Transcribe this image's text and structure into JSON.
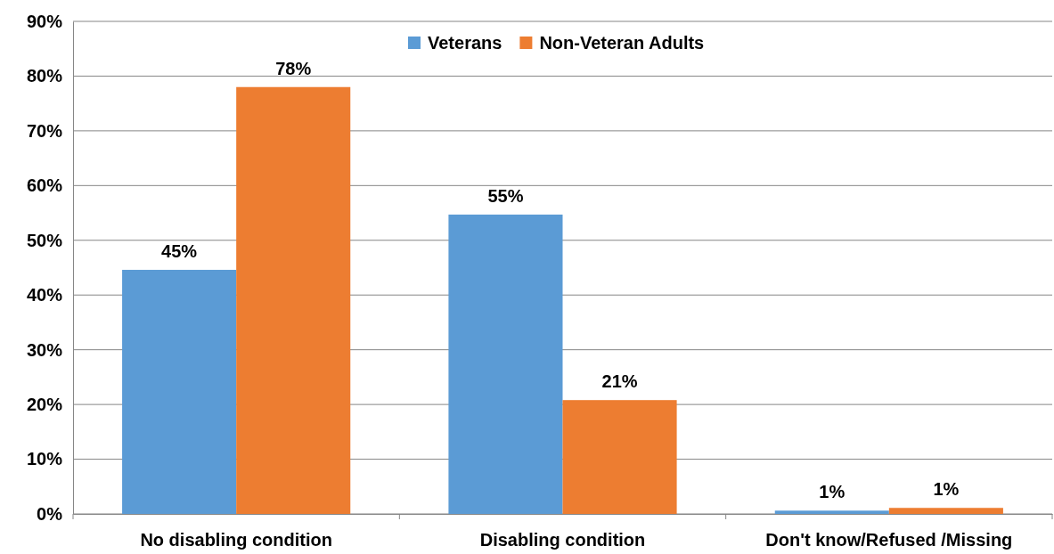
{
  "chart_data": {
    "type": "bar",
    "categories": [
      "No disabling condition",
      "Disabling condition",
      "Don't know/Refused /Missing"
    ],
    "series": [
      {
        "name": "Veterans",
        "color": "#5b9bd5",
        "values": [
          44.6,
          54.7,
          0.6
        ],
        "value_labels": [
          "45%",
          "55%",
          "1%"
        ]
      },
      {
        "name": "Non-Veteran Adults",
        "color": "#ed7d31",
        "values": [
          78,
          20.8,
          1.1
        ],
        "value_labels": [
          "78%",
          "21%",
          "1%"
        ]
      }
    ],
    "ylim": [
      0,
      90
    ],
    "yticks": [
      {
        "value": 0,
        "label": "0%"
      },
      {
        "value": 10,
        "label": "10%"
      },
      {
        "value": 20,
        "label": "20%"
      },
      {
        "value": 30,
        "label": "30%"
      },
      {
        "value": 40,
        "label": "40%"
      },
      {
        "value": 50,
        "label": "50%"
      },
      {
        "value": 60,
        "label": "60%"
      },
      {
        "value": 70,
        "label": "70%"
      },
      {
        "value": 80,
        "label": "80%"
      },
      {
        "value": 90,
        "label": "90%"
      }
    ],
    "grid": "y",
    "legend": "top"
  }
}
